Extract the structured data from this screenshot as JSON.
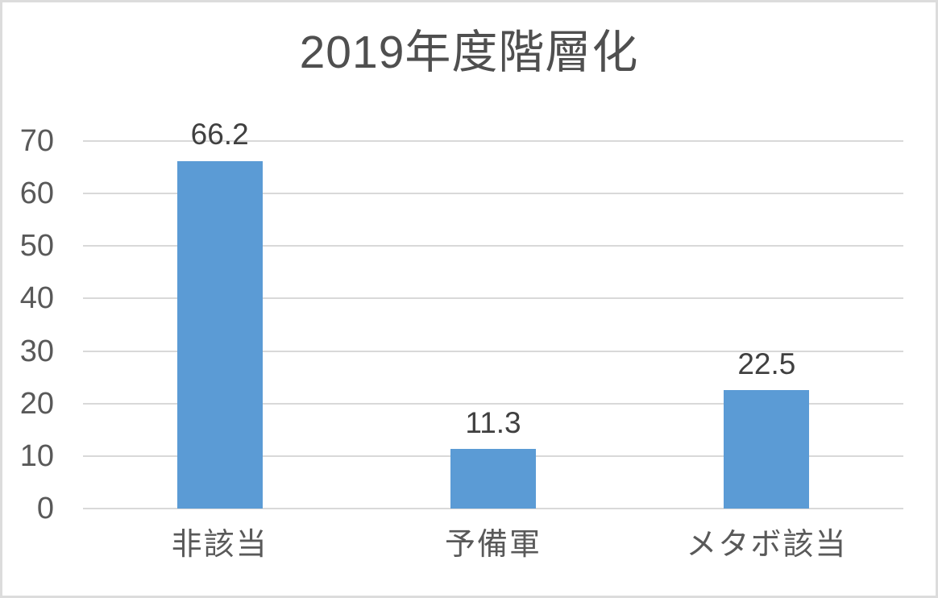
{
  "frame": {
    "background": "#ffffff",
    "border_color": "#dcdcdc"
  },
  "chart_data": {
    "type": "bar",
    "title": "2019年度階層化",
    "categories": [
      "非該当",
      "予備軍",
      "メタボ該当"
    ],
    "values": [
      66.2,
      11.3,
      22.5
    ],
    "data_labels": [
      "66.2",
      "11.3",
      "22.5"
    ],
    "xlabel": "",
    "ylabel": "",
    "ylim": [
      0,
      70
    ],
    "yticks": [
      0,
      10,
      20,
      30,
      40,
      50,
      60,
      70
    ],
    "grid": "horizontal",
    "legend": "none",
    "bar_color": "#5B9BD5",
    "title_color": "#4f4f4f",
    "tick_label_color": "#595959",
    "category_label_color": "#595959",
    "value_label_color": "#404040",
    "gridline_color": "#d9d9d9"
  }
}
